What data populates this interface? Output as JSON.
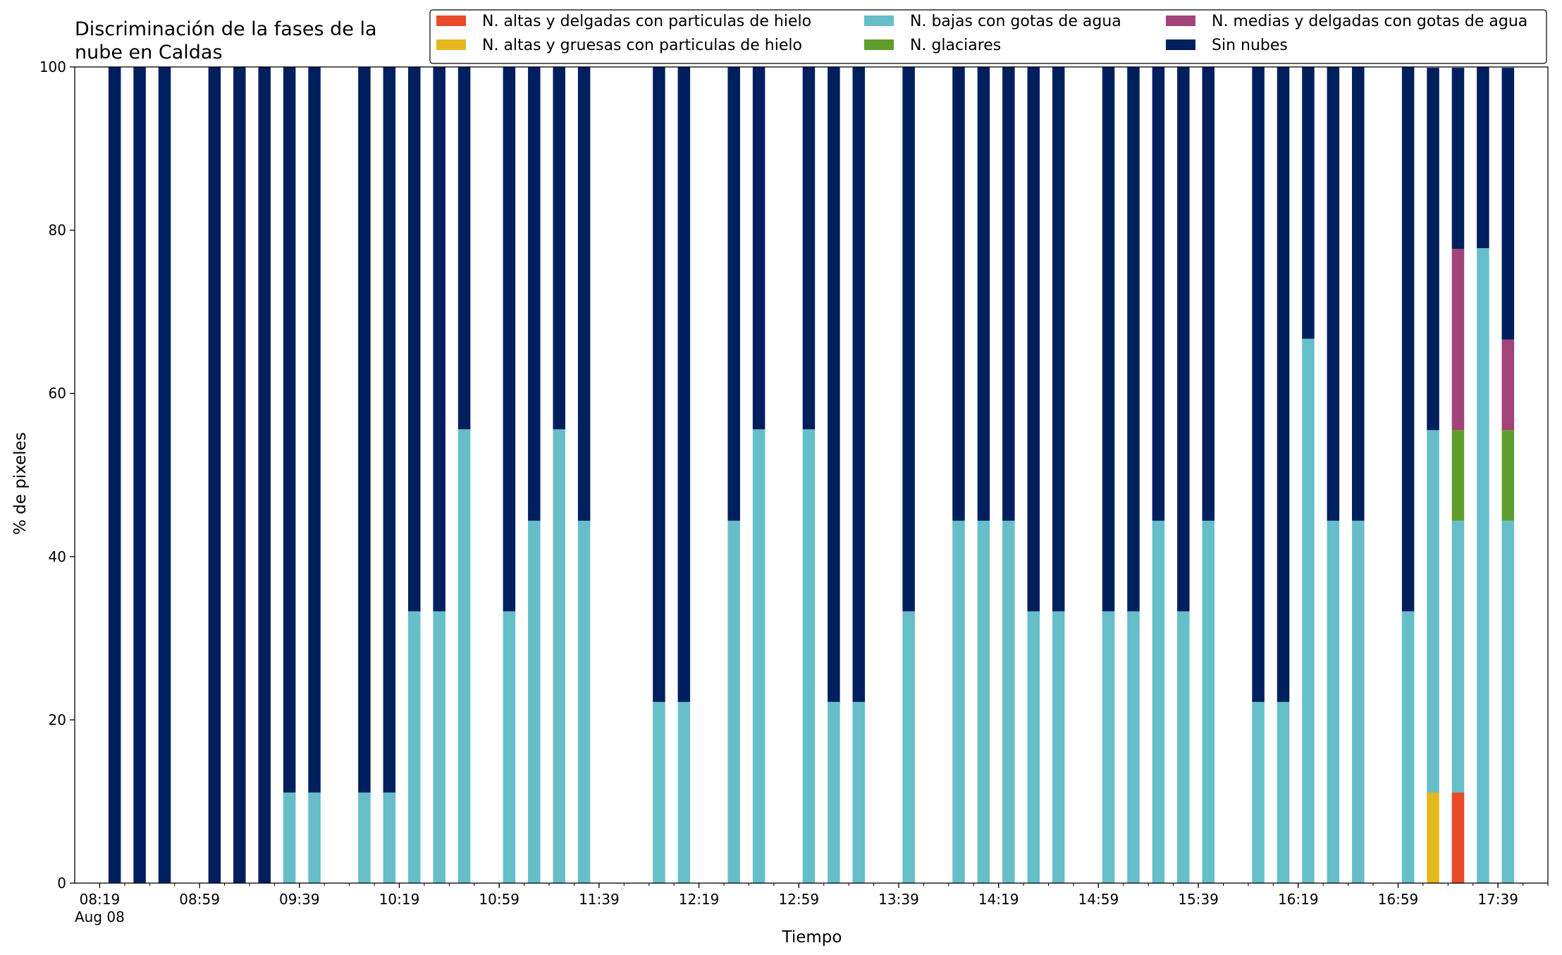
{
  "chart_data": {
    "type": "bar",
    "stacked": true,
    "title_line1": "Discriminación de la fases de la",
    "title_line2": "nube en Caldas",
    "xlabel": "Tiempo",
    "ylabel": "% de pixeles",
    "ylim": [
      0,
      100
    ],
    "yticks": [
      0,
      20,
      40,
      60,
      80,
      100
    ],
    "xlim": [
      "08:09",
      "17:59"
    ],
    "bar_interval_minutes": 10,
    "major_ticks": [
      "08:19",
      "08:59",
      "09:39",
      "10:19",
      "10:59",
      "11:39",
      "12:19",
      "12:59",
      "13:39",
      "14:19",
      "14:59",
      "15:39",
      "16:19",
      "16:59",
      "17:39"
    ],
    "date_label": "Aug 08",
    "legend_position": "upper right",
    "legend_columns": 3,
    "x": [
      "08:25",
      "08:35",
      "08:45",
      "09:05",
      "09:15",
      "09:25",
      "09:35",
      "09:45",
      "10:05",
      "10:15",
      "10:25",
      "10:35",
      "10:45",
      "11:03",
      "11:13",
      "11:23",
      "11:33",
      "12:03",
      "12:13",
      "12:33",
      "12:43",
      "13:03",
      "13:13",
      "13:23",
      "13:43",
      "14:03",
      "14:13",
      "14:23",
      "14:33",
      "14:43",
      "15:03",
      "15:13",
      "15:23",
      "15:33",
      "15:43",
      "16:03",
      "16:13",
      "16:23",
      "16:33",
      "16:43",
      "17:03",
      "17:13",
      "17:23",
      "17:33",
      "17:43"
    ],
    "series": [
      {
        "name": "N. altas y delgadas con particulas de hielo",
        "color": "#e84a2a",
        "values": [
          0,
          0,
          0,
          0,
          0,
          0,
          0,
          0,
          0,
          0,
          0,
          0,
          0,
          0,
          0,
          0,
          0,
          0,
          0,
          0,
          0,
          0,
          0,
          0,
          0,
          0,
          0,
          0,
          0,
          0,
          0,
          0,
          0,
          0,
          0,
          0,
          0,
          0,
          0,
          0,
          0,
          0,
          11.1,
          0,
          0
        ]
      },
      {
        "name": "N. altas y gruesas con particulas de hielo",
        "color": "#e6b81d",
        "values": [
          0,
          0,
          0,
          0,
          0,
          0,
          0,
          0,
          0,
          0,
          0,
          0,
          0,
          0,
          0,
          0,
          0,
          0,
          0,
          0,
          0,
          0,
          0,
          0,
          0,
          0,
          0,
          0,
          0,
          0,
          0,
          0,
          0,
          0,
          0,
          0,
          0,
          0,
          0,
          0,
          0,
          11.1,
          0,
          0,
          0
        ]
      },
      {
        "name": "N. bajas con gotas de agua",
        "color": "#66bec9",
        "values": [
          0,
          0,
          0,
          0,
          0,
          0,
          11.1,
          11.1,
          11.1,
          11.1,
          33.3,
          33.3,
          55.6,
          33.3,
          44.4,
          55.6,
          44.4,
          22.2,
          22.2,
          44.4,
          55.6,
          55.6,
          22.2,
          22.2,
          33.3,
          44.4,
          44.4,
          44.4,
          33.3,
          33.3,
          33.3,
          33.3,
          44.4,
          33.3,
          44.4,
          22.2,
          22.2,
          66.7,
          44.4,
          44.4,
          33.3,
          44.4,
          33.3,
          77.8,
          44.4
        ]
      },
      {
        "name": "N. glaciares",
        "color": "#5f9e2c",
        "values": [
          0,
          0,
          0,
          0,
          0,
          0,
          0,
          0,
          0,
          0,
          0,
          0,
          0,
          0,
          0,
          0,
          0,
          0,
          0,
          0,
          0,
          0,
          0,
          0,
          0,
          0,
          0,
          0,
          0,
          0,
          0,
          0,
          0,
          0,
          0,
          0,
          0,
          0,
          0,
          0,
          0,
          0,
          11.1,
          0,
          11.1
        ]
      },
      {
        "name": "N. medias y delgadas con gotas de agua",
        "color": "#a2437a",
        "values": [
          0,
          0,
          0,
          0,
          0,
          0,
          0,
          0,
          0,
          0,
          0,
          0,
          0,
          0,
          0,
          0,
          0,
          0,
          0,
          0,
          0,
          0,
          0,
          0,
          0,
          0,
          0,
          0,
          0,
          0,
          0,
          0,
          0,
          0,
          0,
          0,
          0,
          0,
          0,
          0,
          0,
          0,
          22.2,
          0,
          11.1
        ]
      },
      {
        "name": "Sin nubes",
        "color": "#001f5f",
        "values": [
          100,
          100,
          100,
          100,
          100,
          100,
          88.9,
          88.9,
          88.9,
          88.9,
          66.7,
          66.7,
          44.4,
          66.7,
          55.6,
          44.4,
          55.6,
          77.8,
          77.8,
          55.6,
          44.4,
          44.4,
          77.8,
          77.8,
          66.7,
          55.6,
          55.6,
          55.6,
          66.7,
          66.7,
          66.7,
          66.7,
          55.6,
          66.7,
          55.6,
          77.8,
          77.8,
          33.3,
          55.6,
          55.6,
          66.7,
          44.4,
          22.2,
          22.2,
          33.3
        ]
      }
    ],
    "legend_order": [
      0,
      1,
      2,
      3,
      4,
      5
    ]
  }
}
